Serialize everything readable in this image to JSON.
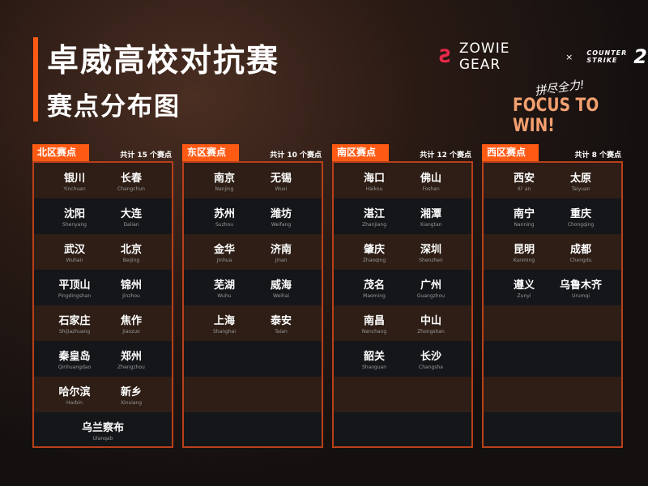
{
  "title": "卓威高校对抗赛",
  "subtitle": "赛点分布图",
  "brand": {
    "zowie": "ZOWIE GEAR",
    "x": "×",
    "cs_line1": "COUNTER",
    "cs_line2": "STRIKE",
    "cs_num": "2"
  },
  "slogan_cn": "拼尽全力!",
  "slogan": "FOCUS TO WIN!",
  "regions": [
    {
      "name": "北区赛点",
      "count": "共计 15 个赛点",
      "cities": [
        {
          "cn": "银川",
          "py": "Yinchuan"
        },
        {
          "cn": "长春",
          "py": "Changchun"
        },
        {
          "cn": "沈阳",
          "py": "Shenyang"
        },
        {
          "cn": "大连",
          "py": "Dalian"
        },
        {
          "cn": "武汉",
          "py": "Wuhan"
        },
        {
          "cn": "北京",
          "py": "Beijing"
        },
        {
          "cn": "平顶山",
          "py": "Pingdingshan"
        },
        {
          "cn": "锦州",
          "py": "Jinzhou"
        },
        {
          "cn": "石家庄",
          "py": "Shijiazhuang"
        },
        {
          "cn": "焦作",
          "py": "Jiaozuo"
        },
        {
          "cn": "秦皇岛",
          "py": "Qinhuangdao"
        },
        {
          "cn": "郑州",
          "py": "Zhengzhou"
        },
        {
          "cn": "哈尔滨",
          "py": "Harbin"
        },
        {
          "cn": "新乡",
          "py": "Xinxiang"
        },
        {
          "cn": "乌兰察布",
          "py": "Ulanqab"
        }
      ]
    },
    {
      "name": "东区赛点",
      "count": "共计 10 个赛点",
      "cities": [
        {
          "cn": "南京",
          "py": "Nanjing"
        },
        {
          "cn": "无锡",
          "py": "Wuxi"
        },
        {
          "cn": "苏州",
          "py": "Suzhou"
        },
        {
          "cn": "潍坊",
          "py": "Weifang"
        },
        {
          "cn": "金华",
          "py": "Jinhua"
        },
        {
          "cn": "济南",
          "py": "Jinan"
        },
        {
          "cn": "芜湖",
          "py": "Wuhu"
        },
        {
          "cn": "威海",
          "py": "Weihai"
        },
        {
          "cn": "上海",
          "py": "Shanghai"
        },
        {
          "cn": "泰安",
          "py": "Taian"
        }
      ]
    },
    {
      "name": "南区赛点",
      "count": "共计 12 个赛点",
      "cities": [
        {
          "cn": "海口",
          "py": "Haikou"
        },
        {
          "cn": "佛山",
          "py": "Foshan"
        },
        {
          "cn": "湛江",
          "py": "Zhanjiang"
        },
        {
          "cn": "湘潭",
          "py": "Xiangtan"
        },
        {
          "cn": "肇庆",
          "py": "Zhaoqing"
        },
        {
          "cn": "深圳",
          "py": "Shenzhen"
        },
        {
          "cn": "茂名",
          "py": "Maoming"
        },
        {
          "cn": "广州",
          "py": "Guangzhou"
        },
        {
          "cn": "南昌",
          "py": "Nanchang"
        },
        {
          "cn": "中山",
          "py": "Zhongshan"
        },
        {
          "cn": "韶关",
          "py": "Shaoguan"
        },
        {
          "cn": "长沙",
          "py": "Changsha"
        }
      ]
    },
    {
      "name": "西区赛点",
      "count": "共计 8 个赛点",
      "cities": [
        {
          "cn": "西安",
          "py": "Xi' an"
        },
        {
          "cn": "太原",
          "py": "Taiyuan"
        },
        {
          "cn": "南宁",
          "py": "Nanning"
        },
        {
          "cn": "重庆",
          "py": "Chongqing"
        },
        {
          "cn": "昆明",
          "py": "Kunming"
        },
        {
          "cn": "成都",
          "py": "Chengdu"
        },
        {
          "cn": "遵义",
          "py": "Zunyi"
        },
        {
          "cn": "乌鲁木齐",
          "py": "Urumqi"
        }
      ]
    }
  ],
  "colors": {
    "accent": "#ff5a14",
    "border": "#b8401a",
    "zowie": "#e8284a",
    "slogan": "#f4a070"
  }
}
